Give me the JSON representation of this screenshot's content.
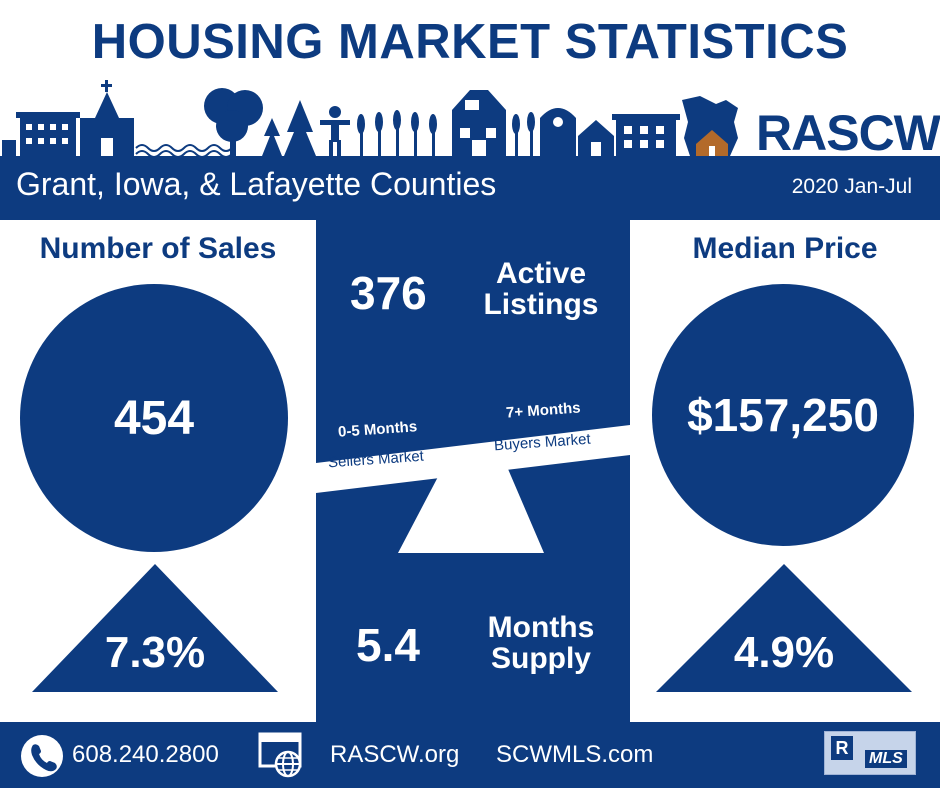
{
  "title": "HOUSING MARKET STATISTICS",
  "brand": "RASCW",
  "region": "Grant, Iowa, & Lafayette Counties",
  "period": "2020 Jan-Jul",
  "sales": {
    "label": "Number of Sales",
    "value": "454",
    "change": "7.3%"
  },
  "price": {
    "label": "Median Price",
    "value": "$157,250",
    "change": "4.9%"
  },
  "listings": {
    "value": "376",
    "label_line1": "Active",
    "label_line2": "Listings"
  },
  "supply": {
    "value": "5.4",
    "label_line1": "Months",
    "label_line2": "Supply"
  },
  "scale": {
    "left_top": "0-5 Months",
    "left_bottom": "Sellers Market",
    "right_top": "7+ Months",
    "right_bottom": "Buyers Market"
  },
  "footer": {
    "phone": "608.240.2800",
    "site1": "RASCW.org",
    "site2": "SCWMLS.com",
    "mls_badge": "MLS"
  },
  "colors": {
    "navy": "#0d3b80",
    "white": "#ffffff",
    "house_orange": "#b36a2a"
  },
  "icons": [
    "church-icon",
    "tree-icon",
    "barn-icon",
    "house-icon",
    "wisconsin-map-icon",
    "phone-icon",
    "web-globe-icon",
    "realtor-mls-logo"
  ]
}
